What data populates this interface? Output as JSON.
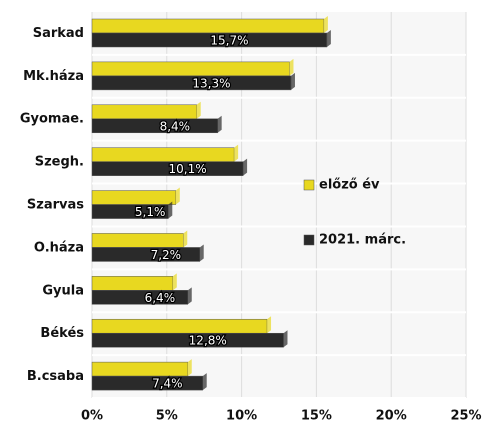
{
  "chart_data": {
    "type": "bar",
    "orientation": "horizontal",
    "categories": [
      "Sarkad",
      "Mk.háza",
      "Gyomae.",
      "Szegh.",
      "Szarvas",
      "O.háza",
      "Gyula",
      "Békés",
      "B.csaba"
    ],
    "series": [
      {
        "name": "előző év",
        "color": "#e8d820",
        "values": [
          15.5,
          13.2,
          7.0,
          9.5,
          5.6,
          6.1,
          5.4,
          11.7,
          6.4
        ]
      },
      {
        "name": "2021. márc.",
        "color": "#2a2a2a",
        "values": [
          15.7,
          13.3,
          8.4,
          10.1,
          5.1,
          7.2,
          6.4,
          12.8,
          7.4
        ],
        "value_labels": [
          "15,7%",
          "13,3%",
          "8,4%",
          "10,1%",
          "5,1%",
          "7,2%",
          "6,4%",
          "12,8%",
          "7,4%"
        ]
      }
    ],
    "xlim": [
      0,
      25
    ],
    "xticks": [
      {
        "value": 0,
        "label": "0%"
      },
      {
        "value": 5,
        "label": "5%"
      },
      {
        "value": 10,
        "label": "10%"
      },
      {
        "value": 15,
        "label": "15%"
      },
      {
        "value": 20,
        "label": "20%"
      },
      {
        "value": 25,
        "label": "25%"
      }
    ],
    "grid": true,
    "legend": "right"
  }
}
